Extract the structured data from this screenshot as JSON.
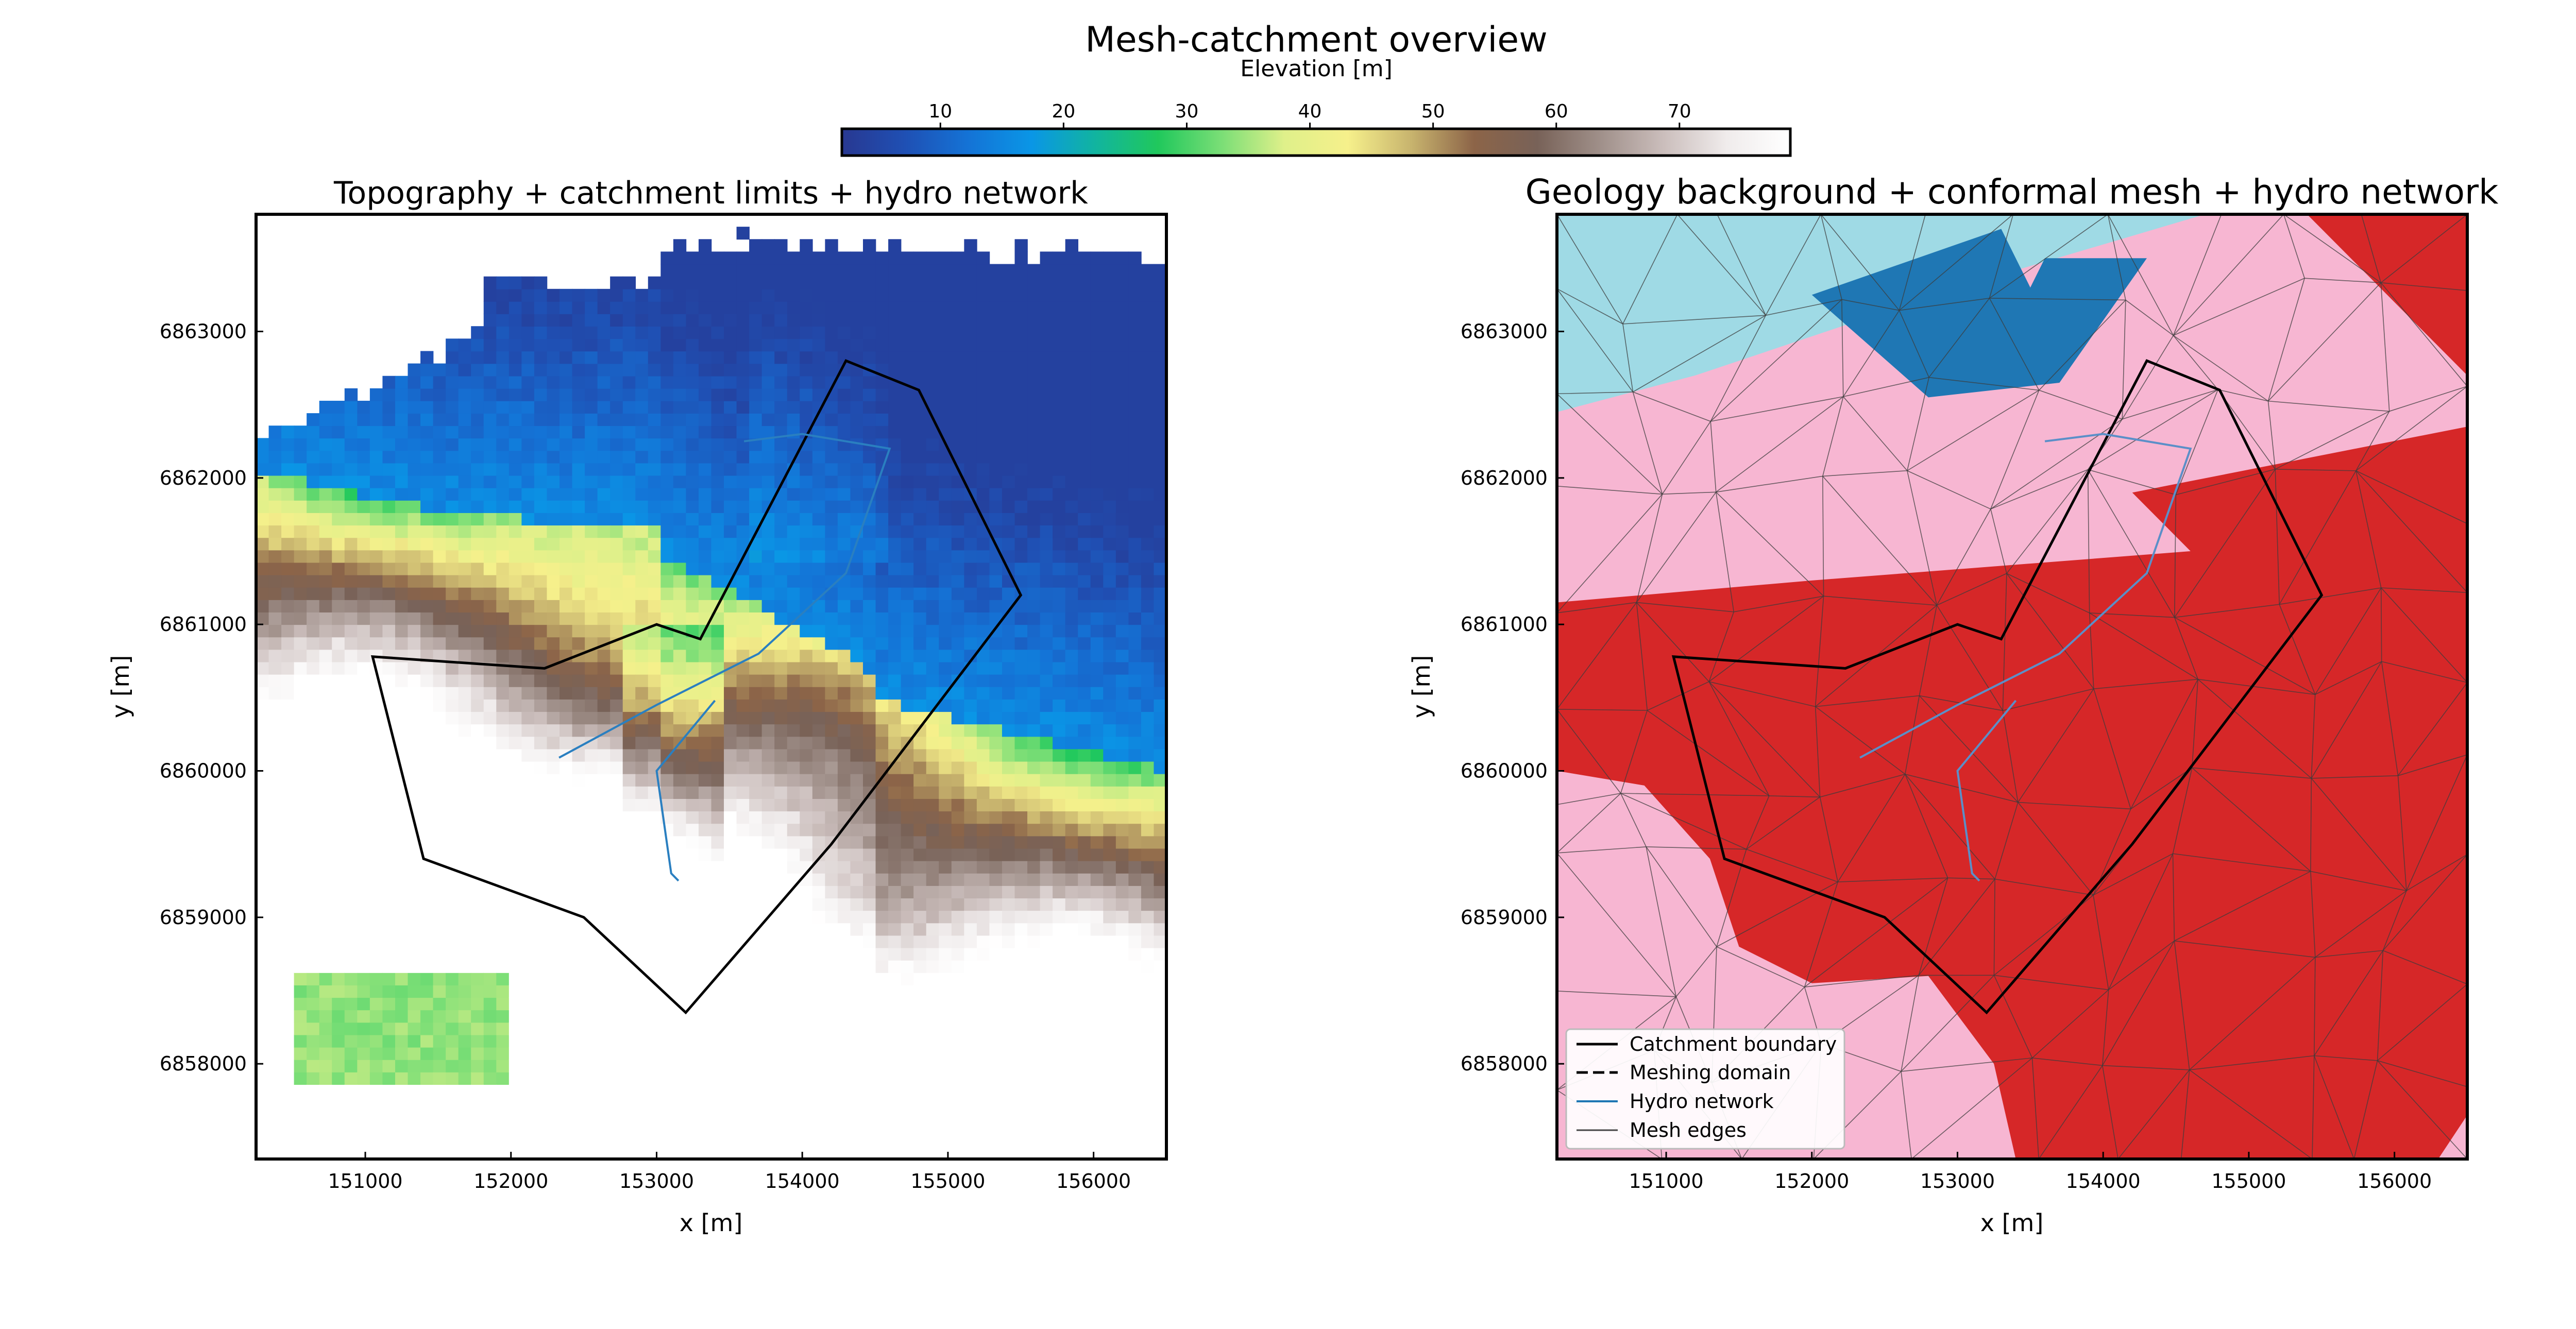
{
  "figure": {
    "title": "Mesh-catchment overview",
    "colorbar": {
      "label": "Elevation [m]",
      "ticks": [
        10,
        20,
        30,
        40,
        50,
        60,
        70
      ],
      "range": [
        2,
        79
      ],
      "colormap": [
        "#283891",
        "#1f50b4",
        "#1473d6",
        "#0a96e6",
        "#11b4a0",
        "#20c85c",
        "#7ade76",
        "#dff08a",
        "#f6f08b",
        "#c8b46e",
        "#8c6448",
        "#786258",
        "#a0908a",
        "#cbbebc",
        "#f0ecec",
        "#ffffff"
      ]
    }
  },
  "chart_data": [
    {
      "type": "heatmap",
      "title": "Topography + catchment limits + hydro network",
      "xlabel": "x [m]",
      "ylabel": "y [m]",
      "xlim": [
        150250,
        156500
      ],
      "ylim": [
        6857350,
        6863800
      ],
      "xticks": [
        151000,
        152000,
        153000,
        154000,
        155000,
        156000
      ],
      "yticks": [
        6858000,
        6859000,
        6860000,
        6861000,
        6862000,
        6863000
      ],
      "z_units": "m",
      "nodata_region": "north (white)",
      "catchment_boundary": [
        [
          152230,
          6860700
        ],
        [
          153000,
          6861000
        ],
        [
          153300,
          6860900
        ],
        [
          154300,
          6862800
        ],
        [
          154800,
          6862600
        ],
        [
          155500,
          6861200
        ],
        [
          154200,
          6859500
        ],
        [
          153200,
          6858350
        ],
        [
          152500,
          6859000
        ],
        [
          151400,
          6859400
        ],
        [
          151050,
          6860780
        ]
      ],
      "hydro_network": [
        [
          [
            152330,
            6860090
          ],
          [
            153000,
            6860450
          ],
          [
            153700,
            6860800
          ],
          [
            154300,
            6861350
          ],
          [
            154600,
            6862200
          ],
          [
            154000,
            6862300
          ],
          [
            153600,
            6862250
          ]
        ],
        [
          [
            153400,
            6860480
          ],
          [
            153000,
            6860000
          ],
          [
            153100,
            6859300
          ],
          [
            153150,
            6859250
          ]
        ]
      ]
    },
    {
      "type": "map",
      "title": "Geology background + conformal mesh + hydro network",
      "xlabel": "x [m]",
      "ylabel": "y [m]",
      "xlim": [
        150250,
        156500
      ],
      "ylim": [
        6857350,
        6863800
      ],
      "xticks": [
        151000,
        152000,
        153000,
        154000,
        155000,
        156000
      ],
      "yticks": [
        6858000,
        6859000,
        6860000,
        6861000,
        6862000,
        6863000
      ],
      "geology_colors": [
        "#9fdae5",
        "#1f77b4",
        "#f7b6d2",
        "#d62728"
      ],
      "legend": {
        "position": "lower left",
        "entries": [
          {
            "label": "Catchment boundary",
            "style": "solid",
            "color": "#000000"
          },
          {
            "label": "Meshing domain",
            "style": "dashed",
            "color": "#000000"
          },
          {
            "label": "Hydro network",
            "style": "solid",
            "color": "#1f77b4"
          },
          {
            "label": "Mesh edges",
            "style": "solid",
            "color": "#555555"
          }
        ]
      }
    }
  ]
}
